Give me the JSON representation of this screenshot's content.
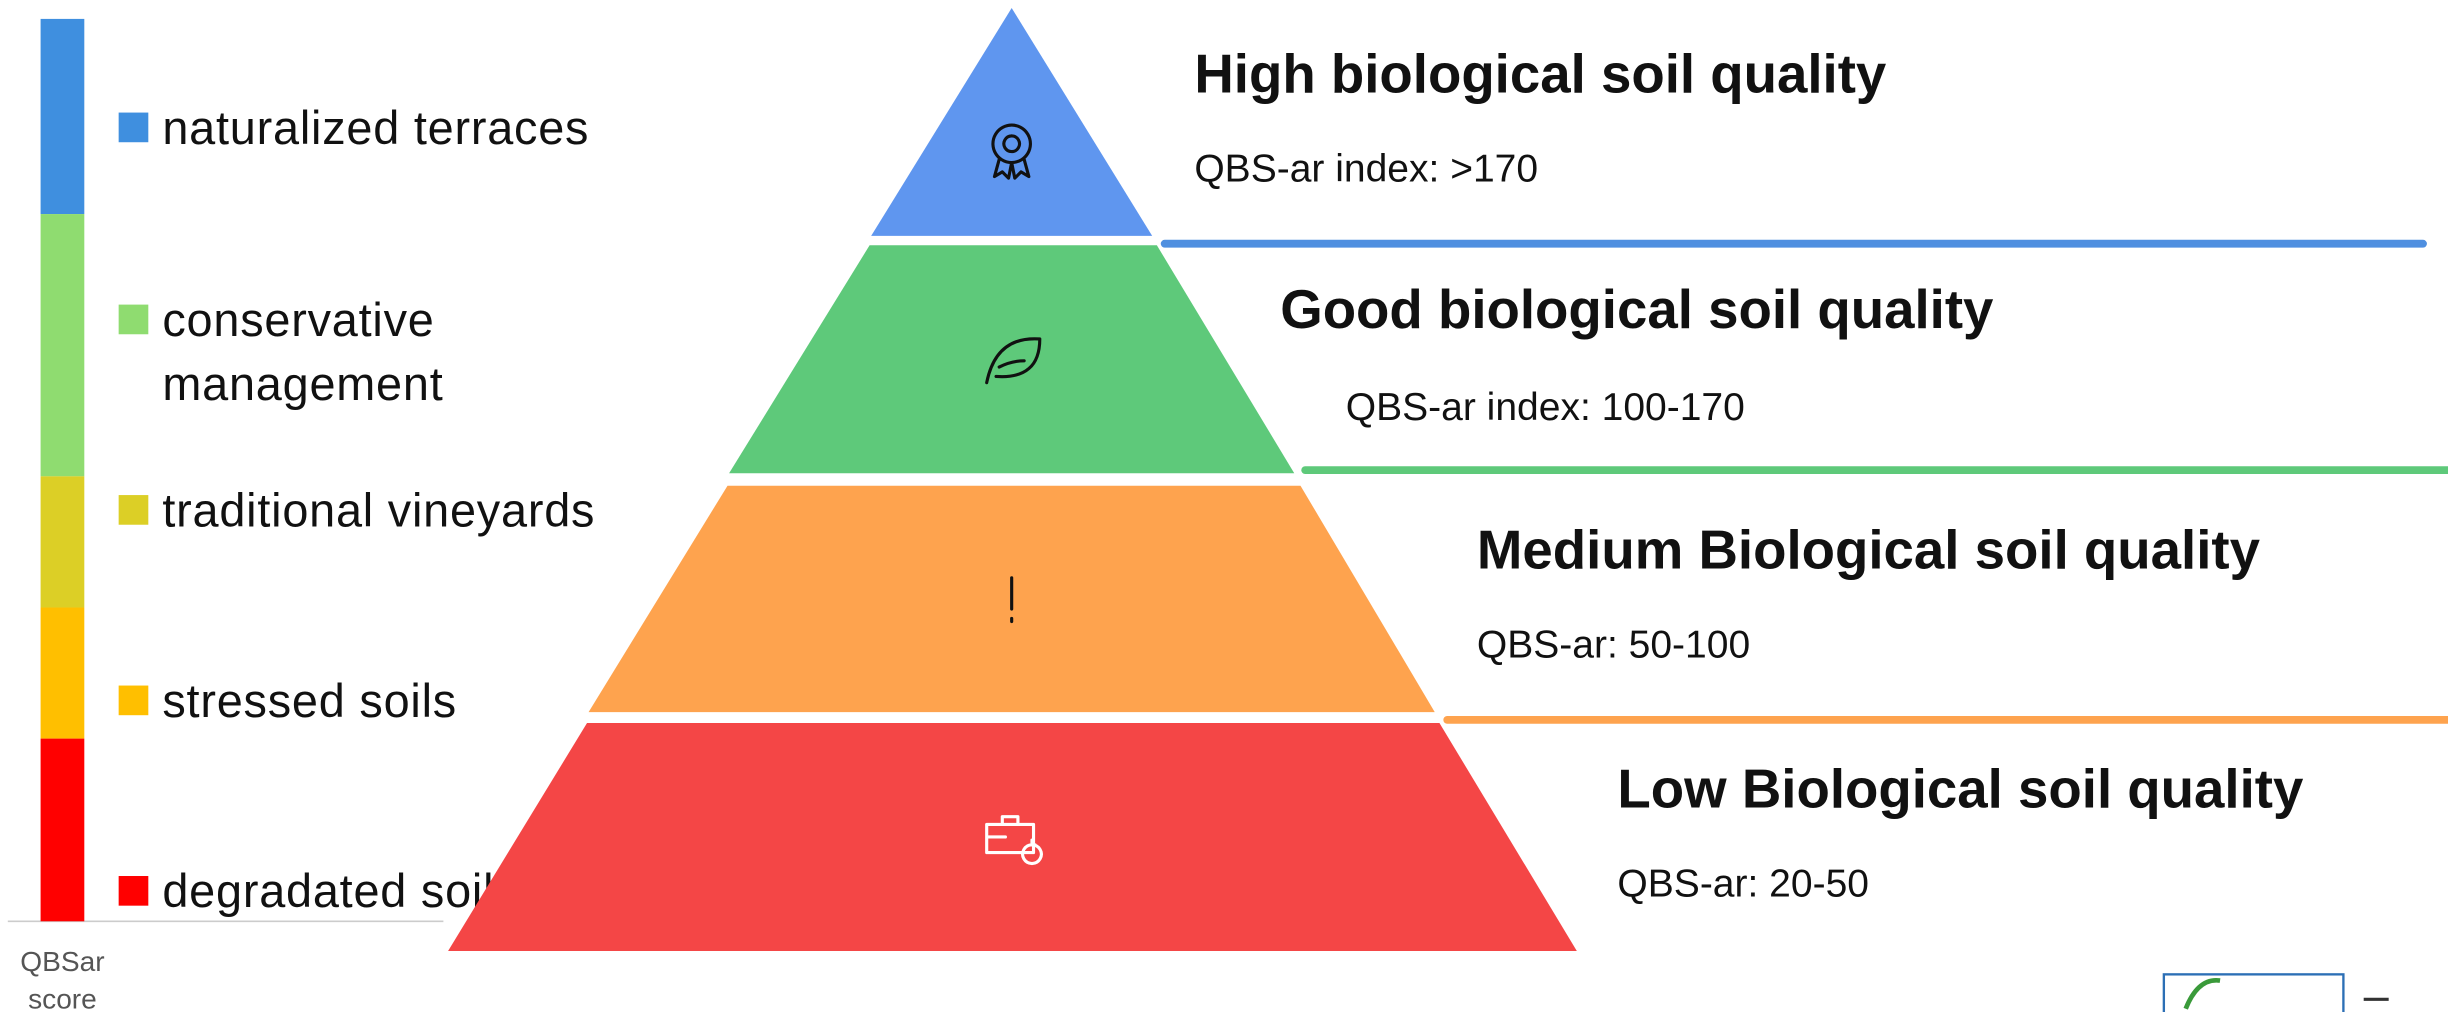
{
  "legend": {
    "items": [
      {
        "label_lines": [
          "naturalized terraces"
        ],
        "color": "#3f8fdf"
      },
      {
        "label_lines": [
          "conservative",
          "management"
        ],
        "color": "#8fdc70"
      },
      {
        "label_lines": [
          "traditional vineyards"
        ],
        "color": "#dccf26"
      },
      {
        "label_lines": [
          "stressed soils"
        ],
        "color": "#ffbf00"
      },
      {
        "label_lines": [
          "degradated soil"
        ],
        "color": "#ff0000"
      }
    ],
    "axis_label_lines": [
      "QBSar",
      "score"
    ]
  },
  "pyramid": {
    "levels": [
      {
        "title": "High biological soil quality",
        "subtitle": "QBS-ar index: >170",
        "color": "#5f96ef",
        "line": "#4f8fe0"
      },
      {
        "title": "Good biological soil quality",
        "subtitle": "QBS-ar index: 100-170",
        "color": "#5ec97a",
        "line": "#5ec97a"
      },
      {
        "title": "Medium Biological soil quality",
        "subtitle": "QBS-ar: 50-100",
        "color": "#fea34e",
        "line": "#fea34e"
      },
      {
        "title": "Low Biological soil quality",
        "subtitle": "QBS-ar: 20-50",
        "color": "#f44646"
      }
    ]
  }
}
